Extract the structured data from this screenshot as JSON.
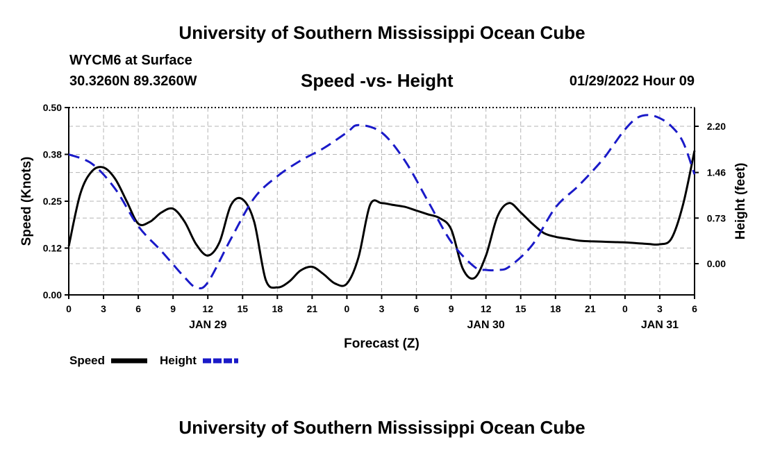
{
  "header": {
    "title": "University of Southern Mississippi Ocean Cube",
    "station": "WYCM6 at Surface",
    "coords": "30.3260N  89.3260W",
    "chart_title": "Speed -vs- Height",
    "datetime": "01/29/2022 Hour 09"
  },
  "footer": {
    "title": "University of Southern Mississippi Ocean Cube"
  },
  "colors": {
    "speed": "#000000",
    "height": "#1a1ac8",
    "grid": "#b4b4b4"
  },
  "chart_data": {
    "type": "line",
    "title": "Speed -vs- Height",
    "xlabel": "Forecast (Z)",
    "ylabel": "Speed (Knots)",
    "y2label": "Height (feet)",
    "xlim": [
      0,
      54
    ],
    "ylim": [
      0,
      0.5
    ],
    "y2lim": [
      -0.5,
      2.5
    ],
    "x_ticks": [
      0,
      3,
      6,
      9,
      12,
      15,
      18,
      21,
      24,
      27,
      30,
      33,
      36,
      39,
      42,
      45,
      48,
      51,
      54
    ],
    "x_tick_labels": [
      "0",
      "3",
      "6",
      "9",
      "12",
      "15",
      "18",
      "21",
      "0",
      "3",
      "6",
      "9",
      "12",
      "15",
      "18",
      "21",
      "0",
      "3",
      "6"
    ],
    "day_labels": [
      {
        "x": 12,
        "label": "JAN 29"
      },
      {
        "x": 36,
        "label": "JAN 30"
      },
      {
        "x": 51,
        "label": "JAN 31"
      }
    ],
    "y_ticks": [
      0.0,
      0.125,
      0.25,
      0.375,
      0.5
    ],
    "y_tick_labels": [
      "0.00",
      "0.12",
      "0.25",
      "0.38",
      "0.50"
    ],
    "y2_ticks": [
      0.0,
      0.73,
      1.46,
      2.2
    ],
    "y2_tick_labels": [
      "0.00",
      "0.73",
      "1.46",
      "2.20"
    ],
    "legend": [
      "Speed",
      "Height"
    ],
    "legend_placement": "bottom-left",
    "series": [
      {
        "name": "Speed",
        "axis": "left",
        "style": "solid",
        "x": [
          0,
          1,
          2,
          3,
          4,
          5,
          6,
          7,
          8,
          9,
          10,
          11,
          12,
          13,
          14,
          15,
          16,
          17,
          18,
          19,
          20,
          21,
          22,
          23,
          24,
          25,
          26,
          27,
          28,
          29,
          30,
          31,
          32,
          33,
          34,
          35,
          36,
          37,
          38,
          39,
          40,
          41,
          42,
          43,
          44,
          45,
          46,
          47,
          48,
          49,
          50,
          51,
          52,
          53,
          54
        ],
        "values": [
          0.13,
          0.27,
          0.33,
          0.34,
          0.31,
          0.25,
          0.19,
          0.195,
          0.22,
          0.23,
          0.195,
          0.135,
          0.105,
          0.14,
          0.24,
          0.255,
          0.195,
          0.04,
          0.02,
          0.035,
          0.065,
          0.075,
          0.055,
          0.03,
          0.03,
          0.1,
          0.24,
          0.245,
          0.24,
          0.235,
          0.225,
          0.215,
          0.205,
          0.175,
          0.07,
          0.045,
          0.105,
          0.21,
          0.245,
          0.22,
          0.19,
          0.165,
          0.155,
          0.15,
          0.145,
          0.143,
          0.142,
          0.141,
          0.14,
          0.138,
          0.136,
          0.135,
          0.15,
          0.24,
          0.385
        ]
      },
      {
        "name": "Height",
        "axis": "right",
        "style": "dashed",
        "x": [
          0,
          2,
          4,
          6,
          8,
          10,
          11,
          12,
          14,
          16,
          18,
          20,
          22,
          24,
          25,
          27,
          29,
          31,
          33,
          35,
          36,
          37,
          38,
          40,
          42,
          44,
          46,
          47,
          48,
          49,
          50,
          51,
          52,
          53,
          54
        ],
        "values": [
          1.75,
          1.6,
          1.2,
          0.6,
          0.2,
          -0.22,
          -0.38,
          -0.3,
          0.4,
          1.05,
          1.4,
          1.65,
          1.85,
          2.1,
          2.22,
          2.1,
          1.65,
          1.0,
          0.35,
          -0.05,
          -0.1,
          -0.1,
          -0.05,
          0.3,
          0.9,
          1.25,
          1.65,
          1.9,
          2.15,
          2.33,
          2.38,
          2.33,
          2.2,
          1.95,
          1.43
        ]
      }
    ]
  }
}
